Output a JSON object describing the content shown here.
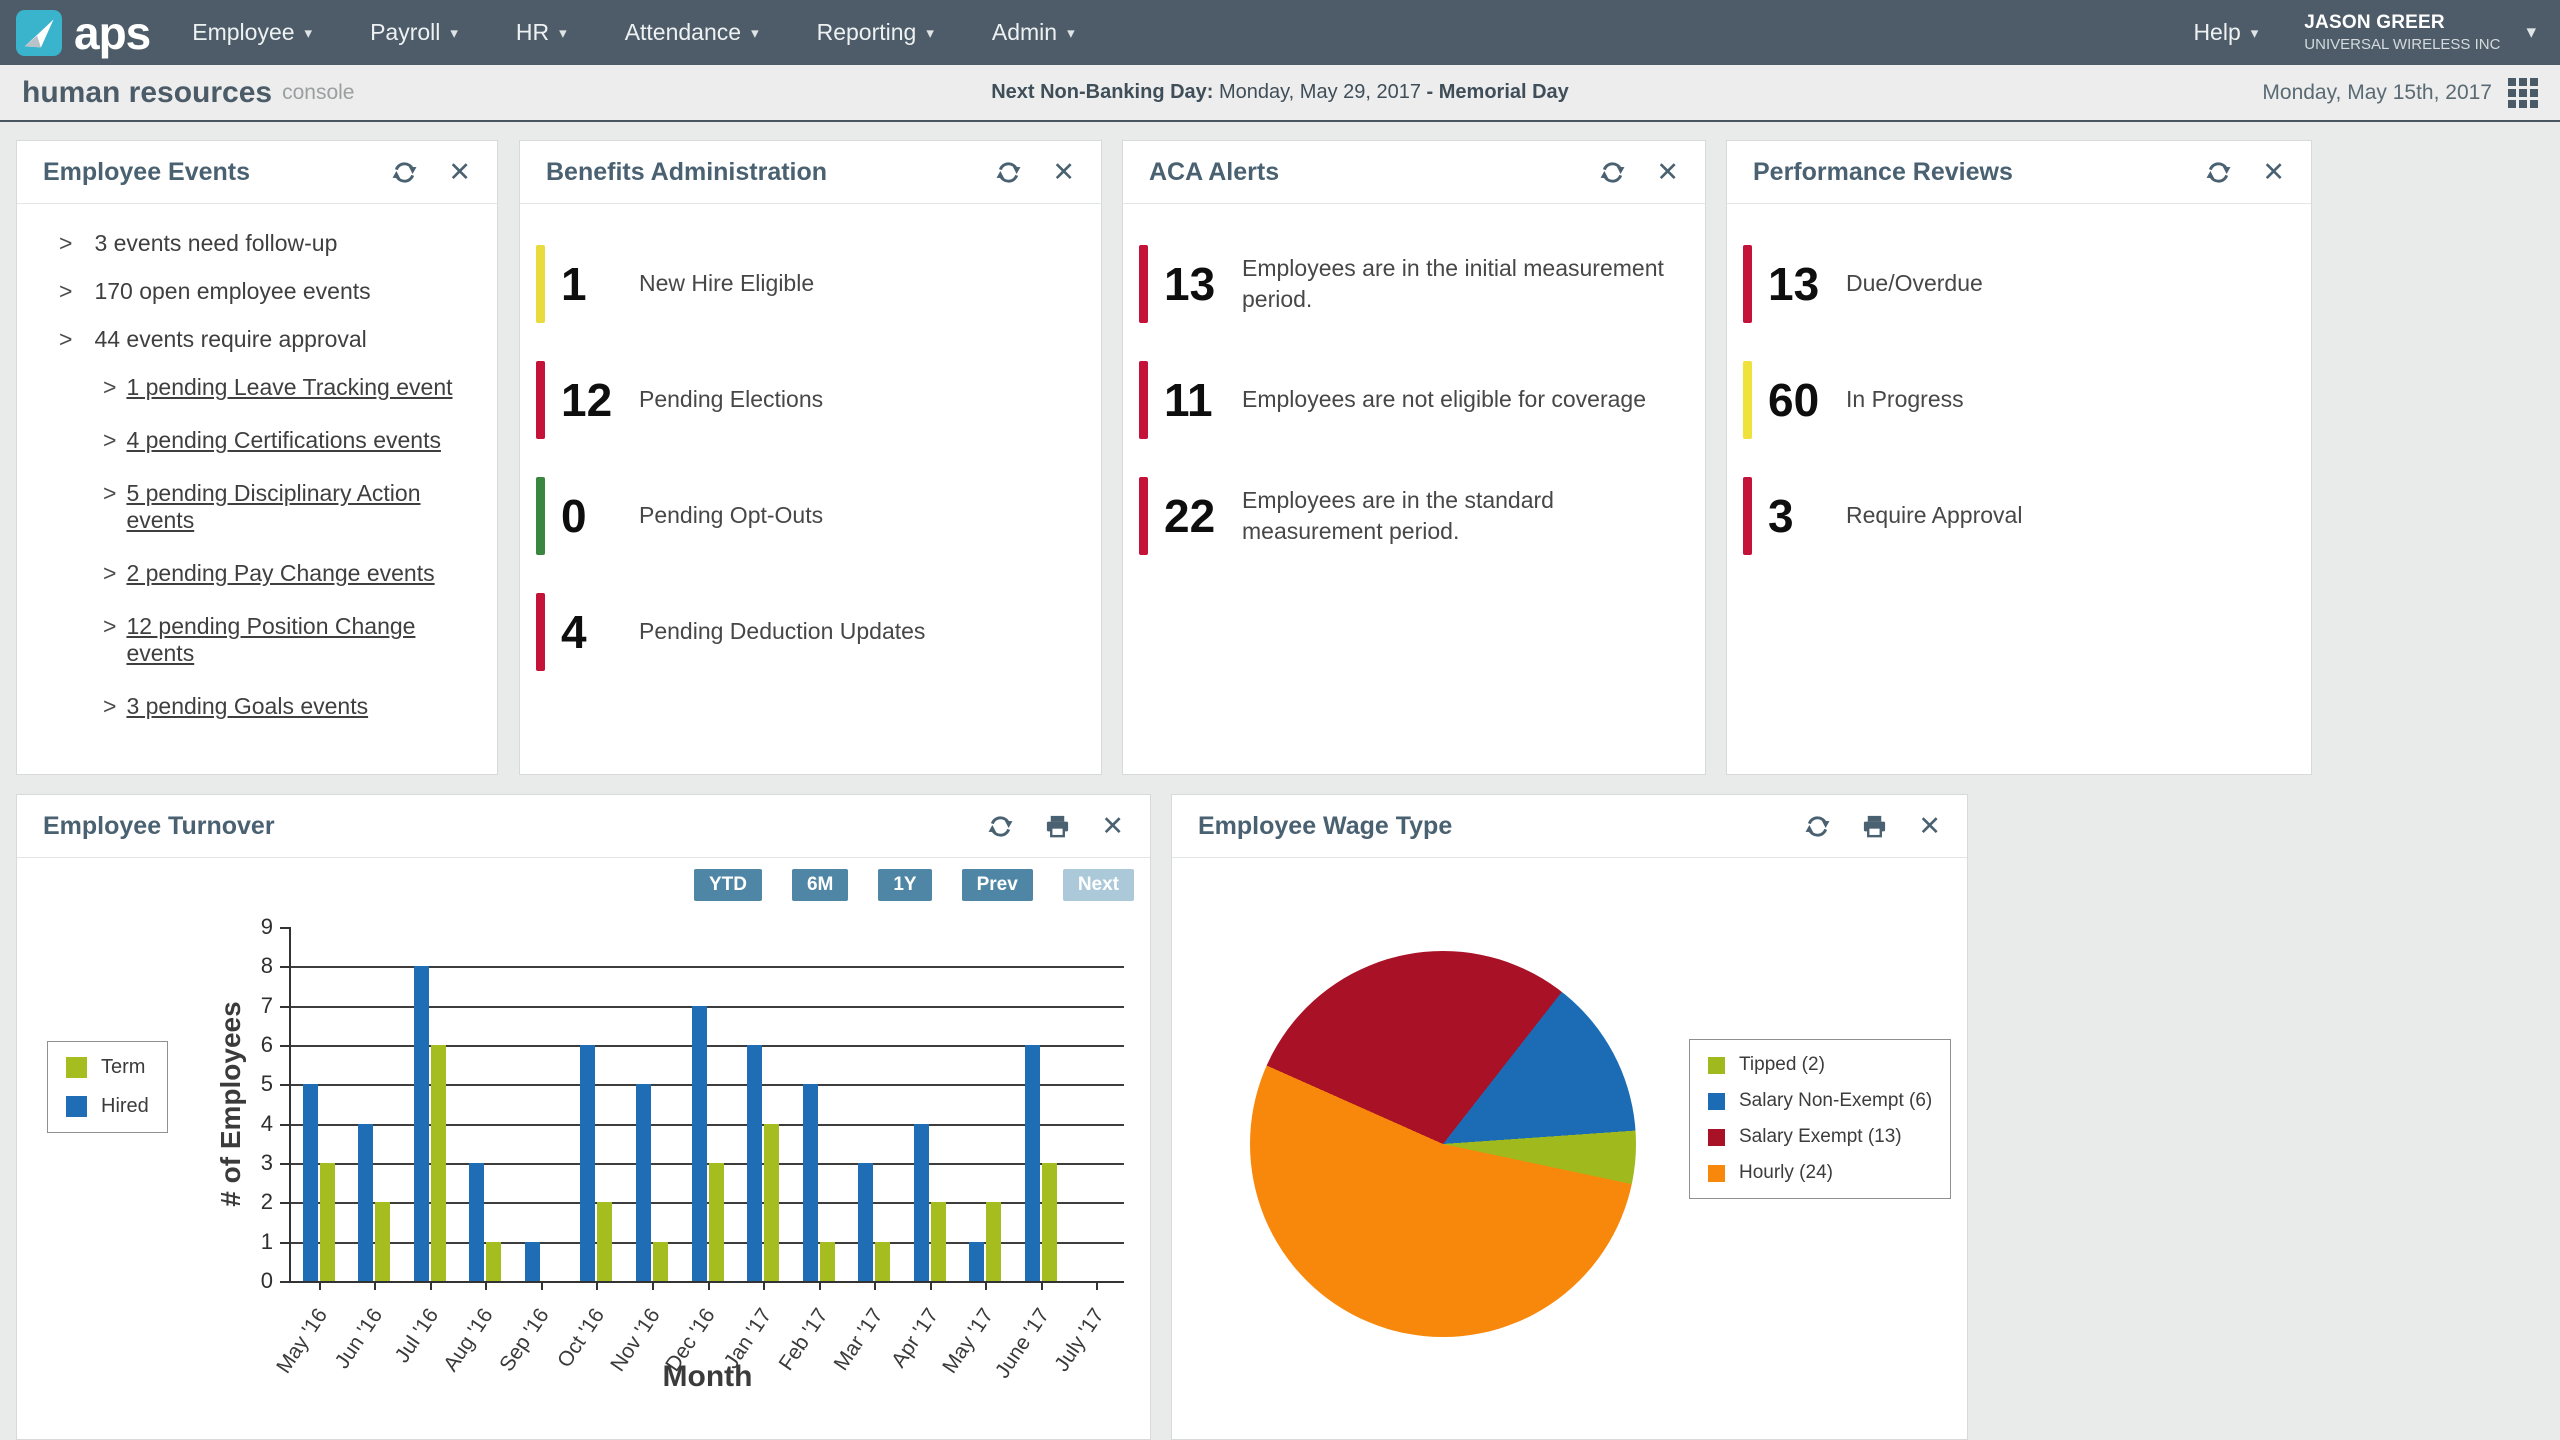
{
  "nav": {
    "brand": "aps",
    "items": [
      "Employee",
      "Payroll",
      "HR",
      "Attendance",
      "Reporting",
      "Admin"
    ],
    "help_label": "Help",
    "user": {
      "name": "JASON GREER",
      "company": "UNIVERSAL WIRELESS INC"
    }
  },
  "icons": {
    "caret": "▾",
    "close_glyph": "✕",
    "chevron": ">"
  },
  "subheader": {
    "title": "human resources",
    "subtitle": "console",
    "banking_label": "Next Non-Banking Day:",
    "banking_date": " Monday, May 29, 2017 ",
    "banking_holiday": "- Memorial Day",
    "today": "Monday, May 15th, 2017"
  },
  "panels": {
    "employee_events": {
      "title": "Employee Events",
      "items": [
        {
          "text": "3 events need follow-up",
          "level": 0,
          "link": false
        },
        {
          "text": "170 open employee events",
          "level": 0,
          "link": false
        },
        {
          "text": "44 events require approval",
          "level": 0,
          "link": false
        },
        {
          "text": "1 pending Leave Tracking event",
          "level": 1,
          "link": true
        },
        {
          "text": "4 pending Certifications events",
          "level": 1,
          "link": true
        },
        {
          "text": "5 pending Disciplinary Action events",
          "level": 1,
          "link": true
        },
        {
          "text": "2 pending Pay Change events",
          "level": 1,
          "link": true
        },
        {
          "text": "12 pending Position Change events",
          "level": 1,
          "link": true
        },
        {
          "text": "3 pending Goals events",
          "level": 1,
          "link": true
        }
      ]
    },
    "benefits": {
      "title": "Benefits Administration",
      "stats": [
        {
          "value": "1",
          "label": "New Hire Eligible",
          "color": "#e9da3d"
        },
        {
          "value": "12",
          "label": "Pending Elections",
          "color": "#c41238"
        },
        {
          "value": "0",
          "label": "Pending Opt-Outs",
          "color": "#3a8540"
        },
        {
          "value": "4",
          "label": "Pending Deduction Updates",
          "color": "#c41238"
        }
      ]
    },
    "aca": {
      "title": "ACA Alerts",
      "stats": [
        {
          "value": "13",
          "label": "Employees are in the initial measurement period.",
          "color": "#c41238"
        },
        {
          "value": "11",
          "label": "Employees are not eligible for coverage",
          "color": "#c41238"
        },
        {
          "value": "22",
          "label": "Employees are in the standard measurement period.",
          "color": "#c41238"
        }
      ]
    },
    "performance": {
      "title": "Performance Reviews",
      "stats": [
        {
          "value": "13",
          "label": "Due/Overdue",
          "color": "#c41238"
        },
        {
          "value": "60",
          "label": "In Progress",
          "color": "#efe23b"
        },
        {
          "value": "3",
          "label": "Require Approval",
          "color": "#c41238"
        }
      ]
    },
    "turnover": {
      "title": "Employee Turnover",
      "buttons": [
        {
          "label": "YTD",
          "enabled": true
        },
        {
          "label": "6M",
          "enabled": true
        },
        {
          "label": "1Y",
          "enabled": true
        },
        {
          "label": "Prev",
          "enabled": true
        },
        {
          "label": "Next",
          "enabled": false
        }
      ]
    },
    "wage_type": {
      "title": "Employee Wage Type"
    }
  },
  "chart_data": [
    {
      "type": "bar",
      "title": "Employee Turnover",
      "categories": [
        "May '16",
        "Jun '16",
        "Jul '16",
        "Aug '16",
        "Sep '16",
        "Oct '16",
        "Nov '16",
        "Dec '16",
        "Jan '17",
        "Feb '17",
        "Mar '17",
        "Apr '17",
        "May '17",
        "June '17",
        "July '17"
      ],
      "series": [
        {
          "name": "Term",
          "color": "#a6bd20",
          "values": [
            3,
            2,
            6,
            1,
            0,
            2,
            1,
            3,
            4,
            1,
            1,
            2,
            2,
            3,
            0
          ]
        },
        {
          "name": "Hired",
          "color": "#1f6db4",
          "values": [
            5,
            4,
            8,
            3,
            1,
            6,
            5,
            7,
            6,
            5,
            3,
            4,
            1,
            6,
            0
          ]
        }
      ],
      "pair_order": [
        "Hired",
        "Term"
      ],
      "xlabel": "Month",
      "ylabel": "# of Employees",
      "ylim": [
        0,
        9
      ],
      "yticks": [
        0,
        1,
        2,
        3,
        4,
        5,
        6,
        7,
        8,
        9
      ],
      "grid": true,
      "legend_position": "left"
    },
    {
      "type": "pie",
      "title": "Employee Wage Type",
      "slices": [
        {
          "label": "Tipped",
          "value": 2,
          "color": "#a0ba1d"
        },
        {
          "label": "Salary Non-Exempt",
          "value": 6,
          "color": "#1b6cb5"
        },
        {
          "label": "Salary Exempt",
          "value": 13,
          "color": "#a91226"
        },
        {
          "label": "Hourly",
          "value": 24,
          "color": "#f8880b"
        }
      ],
      "legend_labels": [
        "Tipped (2)",
        "Salary Non-Exempt (6)",
        "Salary Exempt (13)",
        "Hourly (24)"
      ],
      "legend_position": "right",
      "rotation_from_north_deg": 294,
      "draw_order": [
        "Salary Exempt",
        "Salary Non-Exempt",
        "Tipped",
        "Hourly"
      ]
    }
  ]
}
